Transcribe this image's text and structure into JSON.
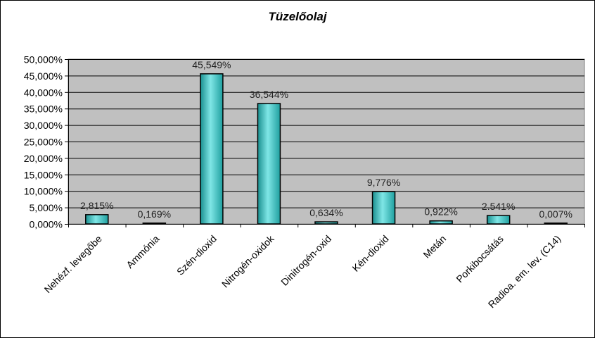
{
  "chart_data": {
    "type": "bar",
    "title": "Tüzelőolaj",
    "categories": [
      "Nehézf. levegőbe",
      "Ammónia",
      "Szén-dioxid",
      "Nitrogén-oxidok",
      "Dinitrogén-oxid",
      "Kén-dioxid",
      "Metán",
      "Porkibocsátás",
      "Radioa. em. lev. (C14)"
    ],
    "values": [
      2.815,
      0.169,
      45.549,
      36.544,
      0.634,
      9.776,
      0.922,
      2.541,
      0.007
    ],
    "data_labels": [
      "2,815%",
      "0,169%",
      "45,549%",
      "36,544%",
      "0,634%",
      "9,776%",
      "0,922%",
      "2.541%",
      "0,007%"
    ],
    "ylim": [
      0,
      50
    ],
    "yticks": [
      0,
      5,
      10,
      15,
      20,
      25,
      30,
      35,
      40,
      45,
      50
    ],
    "ytick_labels": [
      "0,000%",
      "5,000%",
      "10,000%",
      "15,000%",
      "20,000%",
      "25,000%",
      "30,000%",
      "35,000%",
      "40,000%",
      "45,000%",
      "50,000%"
    ],
    "grid": true,
    "legend": "none",
    "colors": {
      "plot_bg": "#c0c0c0",
      "bar_fill": "#33cccc",
      "bar_stroke": "#000000",
      "grid": "#000000"
    }
  }
}
